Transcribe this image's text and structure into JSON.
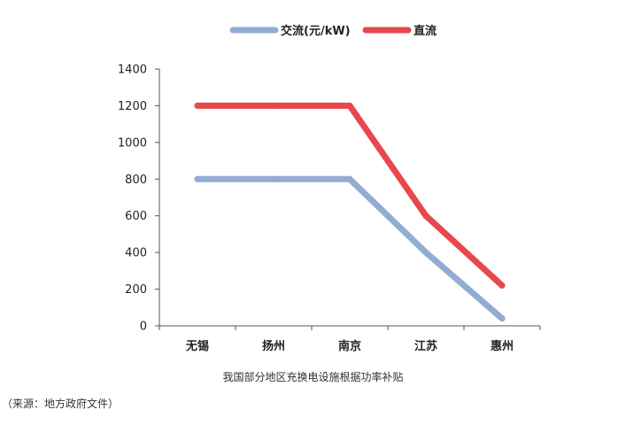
{
  "chart_data": {
    "type": "line",
    "categories": [
      "无锡",
      "扬州",
      "南京",
      "江苏",
      "惠州"
    ],
    "series": [
      {
        "name": "交流(元/kW)",
        "values": [
          800,
          800,
          800,
          400,
          40
        ],
        "color": "#93acd4"
      },
      {
        "name": "直流",
        "values": [
          1200,
          1200,
          1200,
          600,
          220
        ],
        "color": "#e8474c"
      }
    ],
    "ylim": [
      0,
      1400
    ],
    "yticks": [
      0,
      200,
      400,
      600,
      800,
      1000,
      1200,
      1400
    ],
    "grid": false,
    "legend_position": "top-center",
    "xlabel": "",
    "ylabel": "",
    "caption": "我国部分地区充换电设施根据功率补贴"
  },
  "source_note": "（来源：地方政府文件）"
}
